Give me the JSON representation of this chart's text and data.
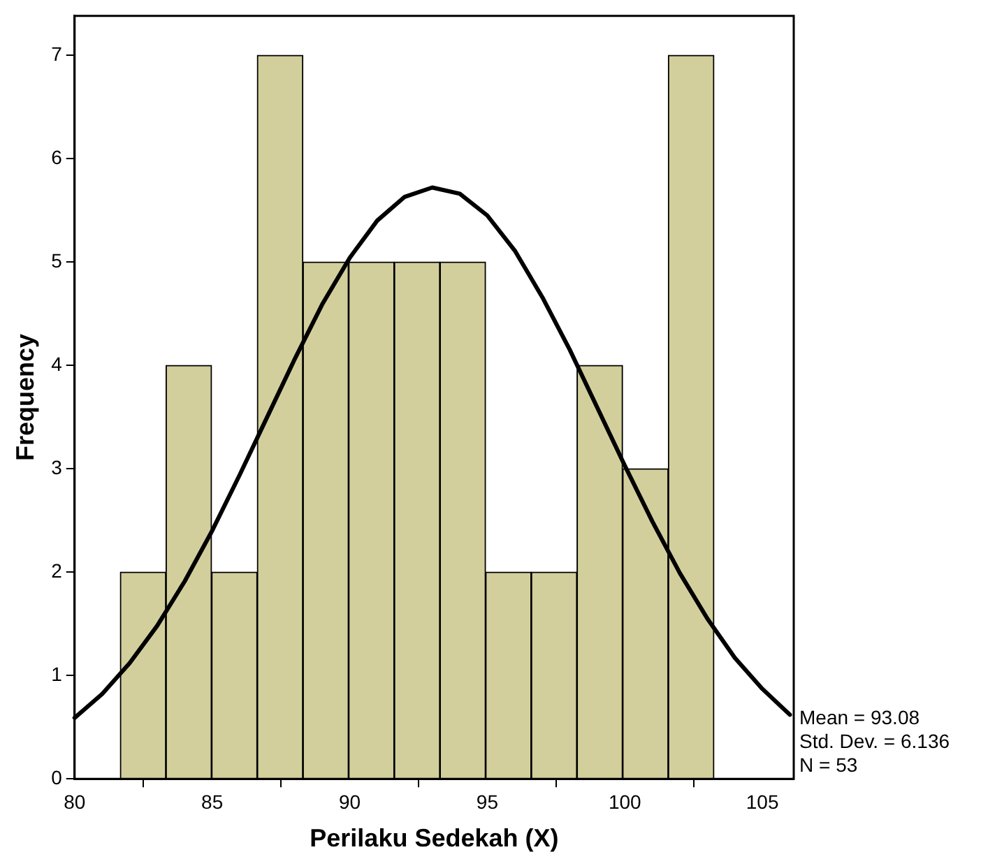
{
  "chart_data": {
    "type": "histogram",
    "xlabel": "Perilaku Sedekah (X)",
    "ylabel": "Frequency",
    "bins": [
      81.66,
      83.32,
      84.98,
      86.64,
      88.3,
      89.96,
      91.62,
      93.28,
      94.94,
      96.6,
      98.26,
      99.92,
      101.58,
      103.24
    ],
    "series": [
      {
        "type": "histogram",
        "color": "#d3cf9d",
        "values": [
          2,
          4,
          2,
          7,
          5,
          5,
          5,
          5,
          2,
          2,
          4,
          3,
          7
        ]
      },
      {
        "type": "line",
        "color": "#000000",
        "x": [
          80,
          81,
          82,
          83,
          84,
          85,
          86,
          87,
          88,
          89,
          90,
          91,
          92,
          93,
          94,
          95,
          96,
          97,
          98,
          99,
          100,
          101,
          102,
          103,
          104,
          105,
          106
        ],
        "values": [
          0.59,
          0.82,
          1.12,
          1.48,
          1.91,
          2.4,
          2.94,
          3.5,
          4.06,
          4.59,
          5.04,
          5.4,
          5.63,
          5.72,
          5.66,
          5.45,
          5.11,
          4.66,
          4.15,
          3.59,
          3.03,
          2.49,
          1.99,
          1.55,
          1.17,
          0.87,
          0.62
        ]
      }
    ],
    "xlim": [
      80,
      106.14
    ],
    "ylim": [
      0,
      7.38
    ],
    "xticks": [
      80,
      85,
      90,
      95,
      100,
      105
    ],
    "yticks": [
      0,
      1,
      2,
      3,
      4,
      5,
      6,
      7
    ],
    "grid": false,
    "legend": false,
    "marker": "none",
    "annotations": [
      "Mean = 93.08",
      "Std. Dev. = 6.136",
      "N = 53"
    ]
  }
}
